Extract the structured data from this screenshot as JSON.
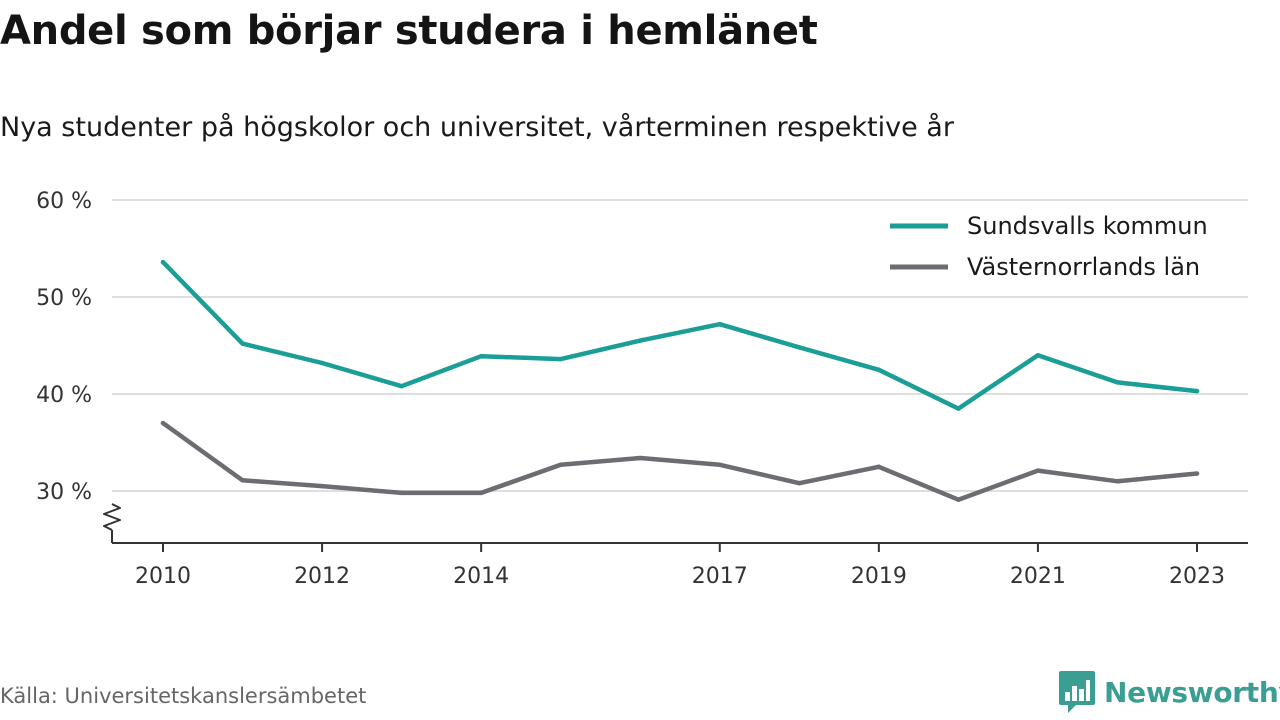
{
  "title": "Andel som börjar studera i hemlänet",
  "subtitle": "Nya studenter på högskolor och universitet, vårterminen respektive år",
  "source": "Källa: Universitetskanslersämbetet",
  "brand": {
    "name": "Newsworthy",
    "logo_icon": "bar-chart-speech-bubble-icon",
    "color": "#3a9e93"
  },
  "chart_data": {
    "type": "line",
    "x": [
      2010,
      2011,
      2012,
      2013,
      2014,
      2015,
      2016,
      2017,
      2018,
      2019,
      2020,
      2021,
      2022,
      2023
    ],
    "x_tick_labels": [
      "2010",
      "2012",
      "2014",
      "2017",
      "2019",
      "2021",
      "2023"
    ],
    "y_tick_labels": [
      "30 %",
      "40 %",
      "50 %",
      "60 %"
    ],
    "y_ticks": [
      30,
      40,
      50,
      60
    ],
    "ylim": [
      25,
      60
    ],
    "y_axis_break": true,
    "grid": "horizontal",
    "legend_position": "top-right",
    "series": [
      {
        "name": "Sundsvalls kommun",
        "color": "#1a9e95",
        "values": [
          53.6,
          45.2,
          43.2,
          40.8,
          43.9,
          43.6,
          45.5,
          47.2,
          44.8,
          42.5,
          38.5,
          44.0,
          41.2,
          40.3
        ]
      },
      {
        "name": "Västernorrlands län",
        "color": "#6d6c72",
        "values": [
          37.0,
          31.1,
          30.5,
          29.8,
          29.8,
          32.7,
          33.4,
          32.7,
          30.8,
          32.5,
          29.1,
          32.1,
          31.0,
          31.8
        ]
      }
    ]
  }
}
